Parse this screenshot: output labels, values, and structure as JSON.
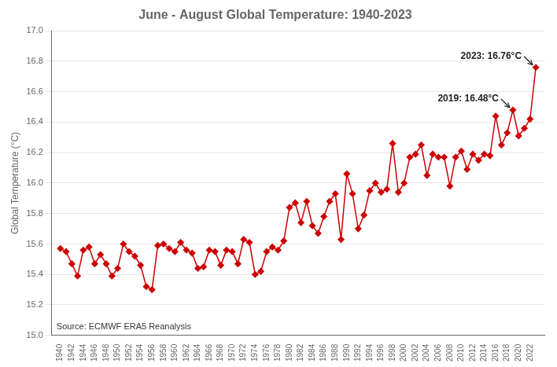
{
  "chart_data": {
    "type": "line",
    "title": "June - August Global Temperature: 1940-2023",
    "ylabel": "Global Temperature (°C)",
    "x": [
      1940,
      1941,
      1942,
      1943,
      1944,
      1945,
      1946,
      1947,
      1948,
      1949,
      1950,
      1951,
      1952,
      1953,
      1954,
      1955,
      1956,
      1957,
      1958,
      1959,
      1960,
      1961,
      1962,
      1963,
      1964,
      1965,
      1966,
      1967,
      1968,
      1969,
      1970,
      1971,
      1972,
      1973,
      1974,
      1975,
      1976,
      1977,
      1978,
      1979,
      1980,
      1981,
      1982,
      1983,
      1984,
      1985,
      1986,
      1987,
      1988,
      1989,
      1990,
      1991,
      1992,
      1993,
      1994,
      1995,
      1996,
      1997,
      1998,
      1999,
      2000,
      2001,
      2002,
      2003,
      2004,
      2005,
      2006,
      2007,
      2008,
      2009,
      2010,
      2011,
      2012,
      2013,
      2014,
      2015,
      2016,
      2017,
      2018,
      2019,
      2020,
      2021,
      2022,
      2023
    ],
    "values": [
      15.57,
      15.55,
      15.47,
      15.39,
      15.56,
      15.58,
      15.47,
      15.53,
      15.47,
      15.39,
      15.44,
      15.6,
      15.55,
      15.52,
      15.46,
      15.32,
      15.3,
      15.59,
      15.6,
      15.57,
      15.55,
      15.61,
      15.56,
      15.54,
      15.44,
      15.45,
      15.56,
      15.55,
      15.46,
      15.56,
      15.55,
      15.47,
      15.63,
      15.61,
      15.4,
      15.42,
      15.55,
      15.58,
      15.56,
      15.62,
      15.84,
      15.87,
      15.74,
      15.88,
      15.72,
      15.67,
      15.78,
      15.88,
      15.93,
      15.63,
      16.06,
      15.93,
      15.7,
      15.79,
      15.95,
      16.0,
      15.94,
      15.96,
      16.26,
      15.94,
      16.0,
      16.17,
      16.19,
      16.25,
      16.05,
      16.19,
      16.17,
      16.17,
      15.98,
      16.17,
      16.21,
      16.09,
      16.19,
      16.15,
      16.19,
      16.18,
      16.44,
      16.25,
      16.33,
      16.48,
      16.31,
      16.36,
      16.42,
      16.76
    ],
    "color": "#CC0000",
    "marker": "diamond",
    "xlim": [
      1938.5,
      2024.5
    ],
    "xticks": [
      1940,
      1942,
      1944,
      1946,
      1948,
      1950,
      1952,
      1954,
      1956,
      1958,
      1960,
      1962,
      1964,
      1966,
      1968,
      1970,
      1972,
      1974,
      1976,
      1978,
      1980,
      1982,
      1984,
      1986,
      1988,
      1990,
      1992,
      1994,
      1996,
      1998,
      2000,
      2002,
      2004,
      2006,
      2008,
      2010,
      2012,
      2014,
      2016,
      2018,
      2020,
      2022
    ],
    "ylim": [
      15.0,
      17.0
    ],
    "yticks": [
      {
        "value": 15.0,
        "label": "15.0"
      },
      {
        "value": 15.2,
        "label": "15.2"
      },
      {
        "value": 15.4,
        "label": "15.4"
      },
      {
        "value": 15.6,
        "label": "15.6"
      },
      {
        "value": 15.8,
        "label": "15.8"
      },
      {
        "value": 16.0,
        "label": "16.0"
      },
      {
        "value": 16.2,
        "label": "16.2"
      },
      {
        "value": 16.4,
        "label": "16.4"
      },
      {
        "value": 16.6,
        "label": "16.6"
      },
      {
        "value": 16.8,
        "label": "16.8"
      },
      {
        "value": 17.0,
        "label": "17.0"
      }
    ],
    "grid": "y",
    "annotations": [
      {
        "text": "2023: 16.76°C",
        "x": 2023,
        "y": 16.76
      },
      {
        "text": "2019: 16.48°C",
        "x": 2019,
        "y": 16.48
      },
      {
        "text": "Source: ECMWF ERA5 Reanalysis"
      }
    ]
  }
}
